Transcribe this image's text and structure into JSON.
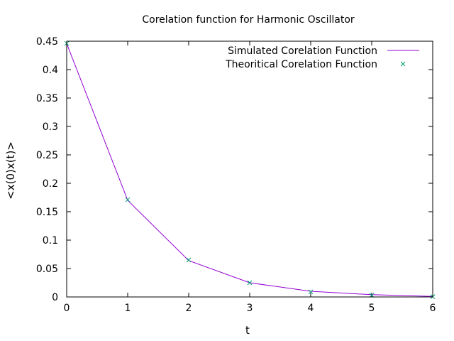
{
  "chart_data": {
    "type": "line",
    "title": "Corelation function for Harmonic Oscillator",
    "xlabel": "t",
    "ylabel": "<x(0)x(t)>",
    "xlim": [
      0,
      6
    ],
    "ylim": [
      0,
      0.45
    ],
    "xticks": [
      "0",
      "1",
      "2",
      "3",
      "4",
      "5",
      "6"
    ],
    "yticks": [
      "0",
      "0.05",
      "0.1",
      "0.15",
      "0.2",
      "0.25",
      "0.3",
      "0.35",
      "0.4",
      "0.45"
    ],
    "x": [
      0,
      1,
      2,
      3,
      4,
      5,
      6
    ],
    "grid": false,
    "legend_position": "top-right",
    "series": [
      {
        "name": "Simulated Corelation Function",
        "style": "line",
        "color": "#9400d3",
        "values": [
          0.446,
          0.17,
          0.064,
          0.025,
          0.01,
          0.004,
          0.001
        ]
      },
      {
        "name": "Theoritical Corelation Function",
        "style": "x-marker",
        "color": "#009e73",
        "values": [
          0.446,
          0.171,
          0.065,
          0.025,
          0.009,
          0.003,
          0.0005
        ]
      }
    ]
  }
}
